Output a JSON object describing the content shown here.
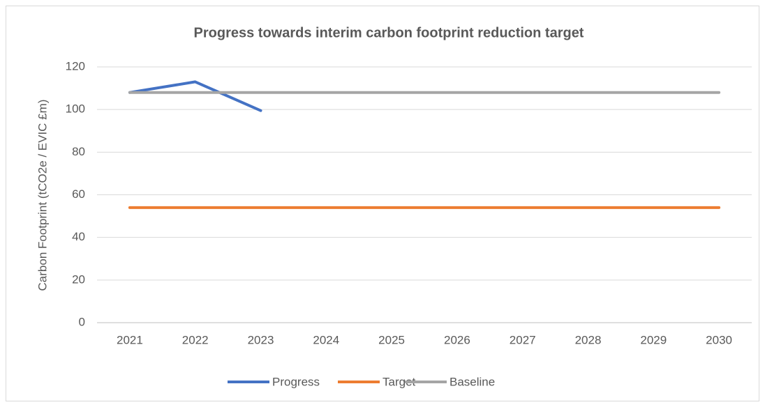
{
  "chart_data": {
    "type": "line",
    "title": "Progress towards interim carbon footprint reduction target",
    "y_label": "Carbon Footprint (tCO2e / EVIC £m)",
    "categories": [
      "2021",
      "2022",
      "2023",
      "2024",
      "2025",
      "2026",
      "2027",
      "2028",
      "2029",
      "2030"
    ],
    "series": [
      {
        "name": "Progress",
        "color": "#4472c4",
        "values": [
          108,
          113,
          99.5,
          null,
          null,
          null,
          null,
          null,
          null,
          null
        ]
      },
      {
        "name": "Target",
        "color": "#ed7d31",
        "values": [
          54,
          54,
          54,
          54,
          54,
          54,
          54,
          54,
          54,
          54
        ]
      },
      {
        "name": "Baseline",
        "color": "#a5a5a5",
        "values": [
          108,
          108,
          108,
          108,
          108,
          108,
          108,
          108,
          108,
          108
        ]
      }
    ],
    "ylim": [
      0,
      120
    ],
    "yticks": [
      0,
      20,
      40,
      60,
      80,
      100,
      120
    ],
    "grid": true,
    "legend": "bottom"
  }
}
